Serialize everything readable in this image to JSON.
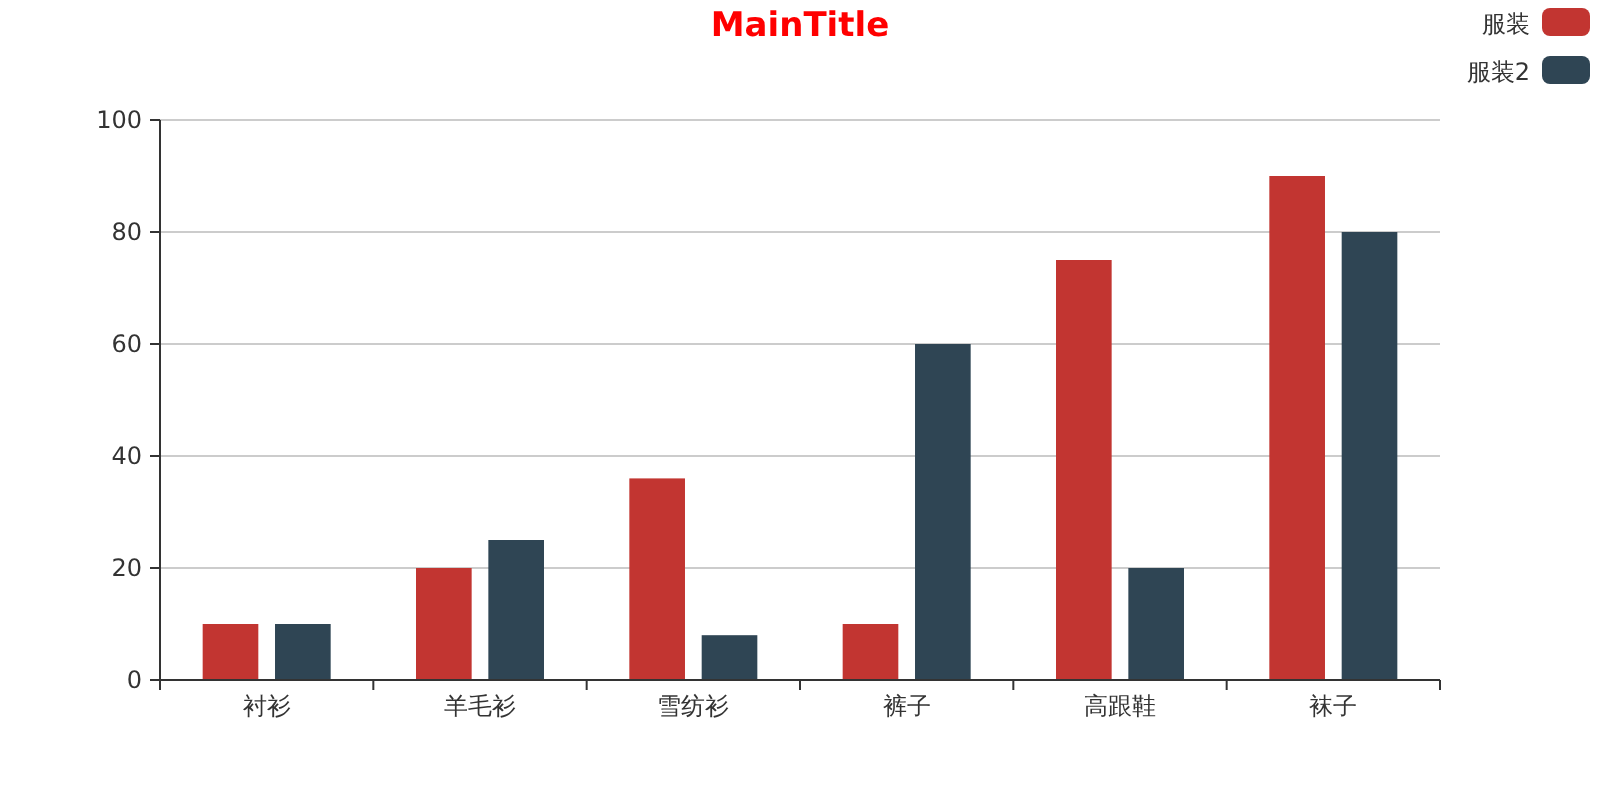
{
  "chart_data": {
    "type": "bar",
    "title": "MainTitle",
    "categories": [
      "衬衫",
      "羊毛衫",
      "雪纺衫",
      "裤子",
      "高跟鞋",
      "袜子"
    ],
    "series": [
      {
        "name": "服装",
        "color": "#c23531",
        "values": [
          10,
          20,
          36,
          10,
          75,
          90
        ]
      },
      {
        "name": "服装2",
        "color": "#2f4554",
        "values": [
          10,
          25,
          8,
          60,
          20,
          80
        ]
      }
    ],
    "ylim": [
      0,
      100
    ],
    "yticks": [
      0,
      20,
      40,
      60,
      80,
      100
    ],
    "grid": "y",
    "legend": "top right"
  }
}
